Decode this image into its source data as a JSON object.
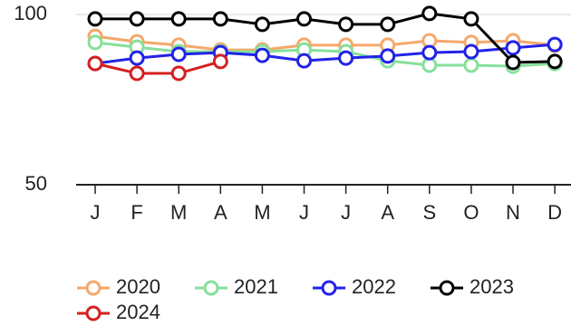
{
  "chart_data": {
    "type": "line",
    "categories": [
      "J",
      "F",
      "M",
      "A",
      "M",
      "J",
      "J",
      "A",
      "S",
      "O",
      "N",
      "D"
    ],
    "ylim": [
      50,
      100
    ],
    "yticks": [
      50,
      100
    ],
    "grid": true,
    "legend": "bottom",
    "series": [
      {
        "name": "2020",
        "color": "#f5a86a",
        "values": [
          93.6,
          92.0,
          91.0,
          89.6,
          89.6,
          91.0,
          91.0,
          91.0,
          92.3,
          91.8,
          92.3,
          91.0
        ]
      },
      {
        "name": "2021",
        "color": "#86e09a",
        "values": [
          91.8,
          90.4,
          89.1,
          89.1,
          89.1,
          89.6,
          89.1,
          86.4,
          85.1,
          85.1,
          84.8,
          85.6
        ]
      },
      {
        "name": "2022",
        "color": "#2222e8",
        "values": [
          85.6,
          87.2,
          88.3,
          88.8,
          88.0,
          86.4,
          87.2,
          87.8,
          88.8,
          89.1,
          90.2,
          91.2
        ]
      },
      {
        "name": "2023",
        "color": "#000000",
        "values": [
          98.7,
          98.7,
          98.7,
          98.7,
          97.1,
          98.7,
          97.1,
          97.1,
          100.3,
          98.7,
          85.9,
          86.2
        ]
      },
      {
        "name": "2024",
        "color": "#d42020",
        "values": [
          85.6,
          82.7,
          82.7,
          86.2,
          null,
          null,
          null,
          null,
          null,
          null,
          null,
          null
        ]
      }
    ]
  }
}
